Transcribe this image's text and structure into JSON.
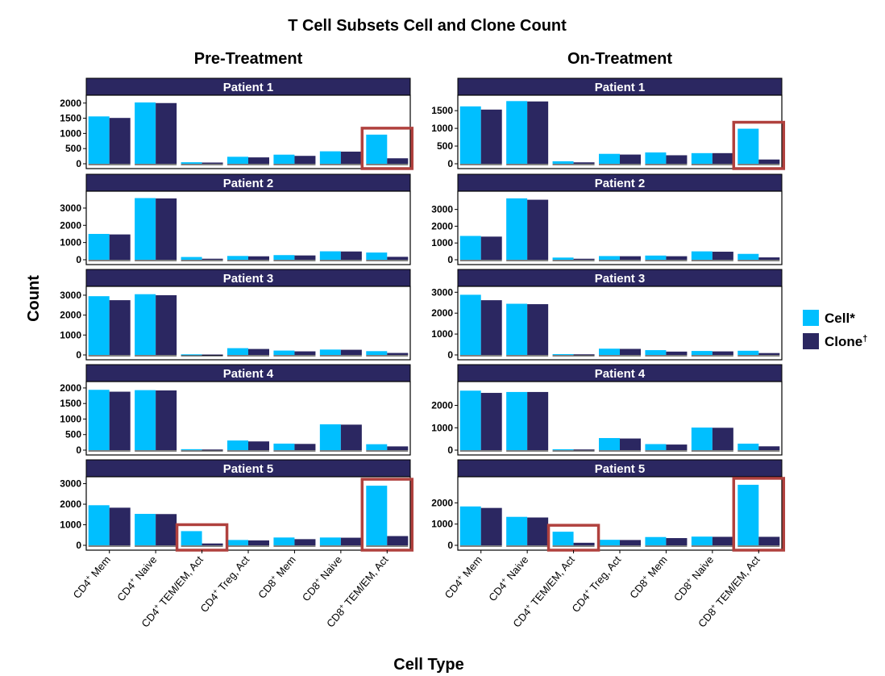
{
  "title": "T Cell Subsets Cell and Clone Count",
  "xlabel": "Cell Type",
  "ylabel": "Count",
  "colors": {
    "cell": "#00bfff",
    "clone": "#2b2761",
    "strip": "#2b2761",
    "highlight": "#b0413e"
  },
  "legend": {
    "placement": "right",
    "items": [
      {
        "name": "Cell",
        "mark": "*",
        "color": "#00bfff"
      },
      {
        "name": "Clone",
        "mark": "†",
        "color": "#2b2761"
      }
    ]
  },
  "categories": [
    {
      "base": "CD4",
      "sup": "+",
      "rest": " Mem"
    },
    {
      "base": "CD4",
      "sup": "+",
      "rest": " Naive"
    },
    {
      "base": "CD4",
      "sup": "+",
      "rest": " TEM/EM, Act"
    },
    {
      "base": "CD4",
      "sup": "+",
      "rest": " Treg, Act"
    },
    {
      "base": "CD8",
      "sup": "+",
      "rest": " Mem"
    },
    {
      "base": "CD8",
      "sup": "+",
      "rest": " Naive"
    },
    {
      "base": "CD8",
      "sup": "+",
      "rest": " TEM/EM, Act"
    }
  ],
  "chart_data": {
    "type": "bar",
    "series_names": [
      "Cell*",
      "Clone†"
    ],
    "columns": [
      {
        "title": "Pre-Treatment",
        "panels": [
          {
            "strip": "Patient 1",
            "ylim": [
              0,
              2100
            ],
            "yticks": [
              0,
              500,
              1000,
              1500,
              2000
            ],
            "cell": [
              1560,
              2020,
              50,
              230,
              300,
              410,
              960
            ],
            "clone": [
              1510,
              2000,
              40,
              210,
              260,
              400,
              180
            ],
            "highlight": [
              6
            ]
          },
          {
            "strip": "Patient 2",
            "ylim": [
              0,
              3700
            ],
            "yticks": [
              0,
              1000,
              2000,
              3000
            ],
            "cell": [
              1500,
              3580,
              160,
              220,
              270,
              490,
              420
            ],
            "clone": [
              1470,
              3560,
              60,
              200,
              250,
              480,
              170
            ],
            "highlight": []
          },
          {
            "strip": "Patient 3",
            "ylim": [
              0,
              3200
            ],
            "yticks": [
              0,
              1000,
              2000,
              3000
            ],
            "cell": [
              2950,
              3050,
              30,
              340,
              220,
              270,
              190
            ],
            "clone": [
              2750,
              3000,
              20,
              300,
              180,
              260,
              100
            ],
            "highlight": []
          },
          {
            "strip": "Patient 4",
            "ylim": [
              0,
              2050
            ],
            "yticks": [
              0,
              500,
              1000,
              1500,
              2000
            ],
            "cell": [
              1940,
              1930,
              30,
              310,
              210,
              830,
              190
            ],
            "clone": [
              1880,
              1920,
              20,
              280,
              200,
              820,
              120
            ],
            "highlight": []
          },
          {
            "strip": "Patient 5",
            "ylim": [
              0,
              3100
            ],
            "yticks": [
              0,
              1000,
              2000,
              3000
            ],
            "cell": [
              1950,
              1530,
              690,
              260,
              380,
              380,
              2900
            ],
            "clone": [
              1830,
              1520,
              90,
              240,
              300,
              370,
              450
            ],
            "highlight": [
              2,
              6
            ]
          }
        ]
      },
      {
        "title": "On-Treatment",
        "panels": [
          {
            "strip": "Patient 1",
            "ylim": [
              0,
              1800
            ],
            "yticks": [
              0,
              500,
              1000,
              1500
            ],
            "cell": [
              1620,
              1770,
              70,
              280,
              320,
              300,
              990
            ],
            "clone": [
              1530,
              1760,
              40,
              260,
              240,
              300,
              120
            ],
            "highlight": [
              6
            ]
          },
          {
            "strip": "Patient 2",
            "ylim": [
              0,
              3800
            ],
            "yticks": [
              0,
              1000,
              2000,
              3000
            ],
            "cell": [
              1420,
              3660,
              130,
              220,
              250,
              500,
              350
            ],
            "clone": [
              1380,
              3580,
              60,
              210,
              210,
              480,
              140
            ],
            "highlight": []
          },
          {
            "strip": "Patient 3",
            "ylim": [
              0,
              3050
            ],
            "yticks": [
              0,
              1000,
              2000,
              3000
            ],
            "cell": [
              2880,
              2450,
              40,
              300,
              230,
              190,
              200
            ],
            "clone": [
              2620,
              2430,
              30,
              290,
              160,
              170,
              90
            ],
            "highlight": []
          },
          {
            "strip": "Patient 4",
            "ylim": [
              0,
              2850
            ],
            "yticks": [
              0,
              1000,
              2000
            ],
            "cell": [
              2660,
              2600,
              40,
              540,
              270,
              1010,
              290
            ],
            "clone": [
              2560,
              2600,
              30,
              520,
              250,
              1000,
              170
            ],
            "highlight": []
          },
          {
            "strip": "Patient 5",
            "ylim": [
              0,
              3000
            ],
            "yticks": [
              0,
              1000,
              2000
            ],
            "cell": [
              1830,
              1340,
              640,
              260,
              390,
              410,
              2850
            ],
            "clone": [
              1760,
              1310,
              120,
              250,
              340,
              400,
              400
            ],
            "highlight": [
              2,
              6
            ]
          }
        ]
      }
    ]
  }
}
